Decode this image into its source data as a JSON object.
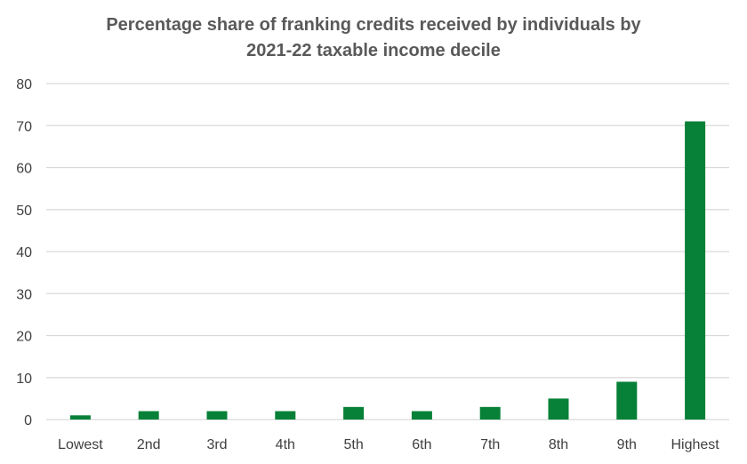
{
  "chart_data": {
    "type": "bar",
    "title_lines": [
      "Percentage share of franking credits received by individuals by",
      "2021-22 taxable income decile"
    ],
    "categories": [
      "Lowest",
      "2nd",
      "3rd",
      "4th",
      "5th",
      "6th",
      "7th",
      "8th",
      "9th",
      "Highest"
    ],
    "values": [
      1,
      2,
      2,
      2,
      3,
      2,
      3,
      5,
      9,
      71
    ],
    "xlabel": "",
    "ylabel": "",
    "ylim": [
      0,
      80
    ],
    "yticks": [
      "0",
      "10",
      "20",
      "30",
      "40",
      "50",
      "60",
      "70",
      "80"
    ],
    "grid": true,
    "legend": "none",
    "bar_color": "#078137",
    "grid_color": "#d9d9d9"
  }
}
